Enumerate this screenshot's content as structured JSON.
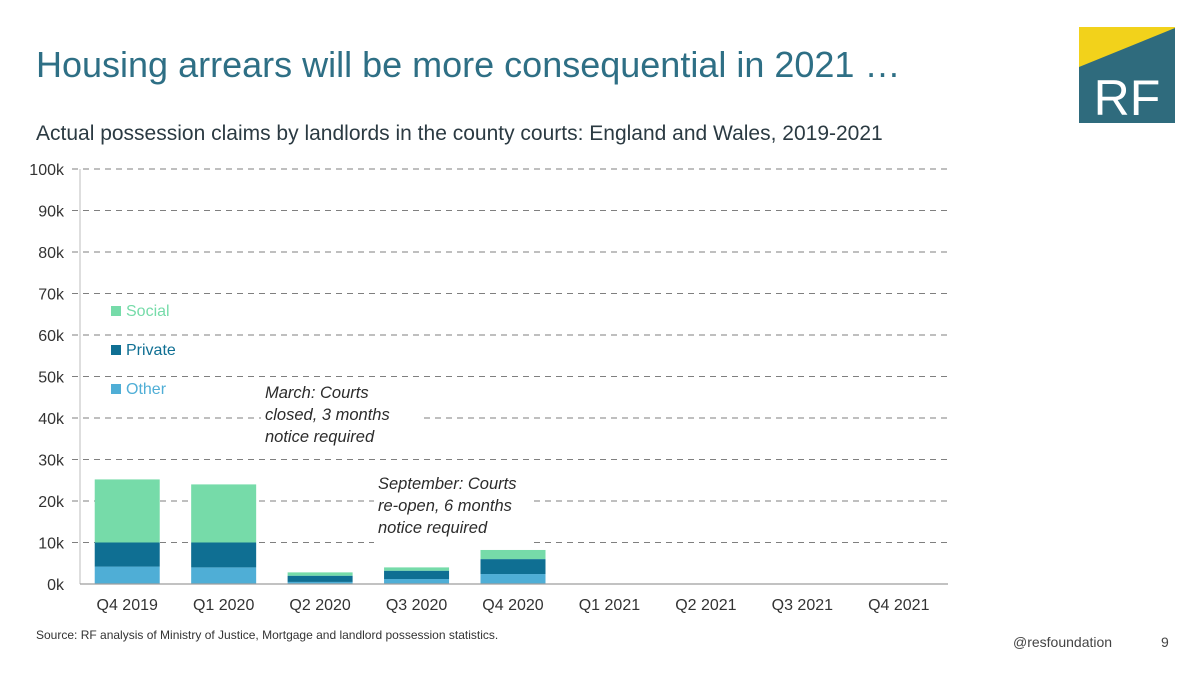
{
  "slide": {
    "title": "Housing arrears will be more consequential in 2021 …",
    "subtitle": "Actual possession claims by landlords in the county courts: England and Wales, 2019-2021",
    "source": "Source: RF analysis of Ministry of Justice, Mortgage and landlord possession statistics.",
    "handle": "@resfoundation",
    "page_number": "9",
    "logo_text": "RF"
  },
  "colors": {
    "title": "#2e6f85",
    "logo_bg": "#2f6b7d",
    "logo_accent": "#f2d21b",
    "social": "#76dba9",
    "private": "#0f6f93",
    "other": "#4faed6",
    "grid": "#7f7f7f"
  },
  "chart_data": {
    "type": "bar",
    "stacked": true,
    "categories": [
      "Q4 2019",
      "Q1 2020",
      "Q2 2020",
      "Q3 2020",
      "Q4 2020",
      "Q1 2021",
      "Q2 2021",
      "Q3 2021",
      "Q4 2021"
    ],
    "series": [
      {
        "name": "Other",
        "color": "#4faed6",
        "values": [
          4200,
          4000,
          500,
          1200,
          2400,
          null,
          null,
          null,
          null
        ]
      },
      {
        "name": "Private",
        "color": "#0f6f93",
        "values": [
          5800,
          6000,
          1500,
          2000,
          3600,
          null,
          null,
          null,
          null
        ]
      },
      {
        "name": "Social",
        "color": "#76dba9",
        "values": [
          15200,
          14000,
          800,
          800,
          2200,
          null,
          null,
          null,
          null
        ]
      }
    ],
    "legend_order": [
      "Social",
      "Private",
      "Other"
    ],
    "legend_position": "top-left",
    "yticks": [
      "0k",
      "10k",
      "20k",
      "30k",
      "40k",
      "50k",
      "60k",
      "70k",
      "80k",
      "90k",
      "100k"
    ],
    "ylim": [
      0,
      100000
    ],
    "grid": "horizontal-dashed",
    "annotations": [
      {
        "lines": [
          "March: Courts",
          "closed, 3 months",
          "notice required"
        ],
        "anchor_category": "Q2 2020"
      },
      {
        "lines": [
          "September: Courts",
          "re-open, 6 months",
          "notice required"
        ],
        "anchor_category": "Q3 2020"
      }
    ]
  }
}
